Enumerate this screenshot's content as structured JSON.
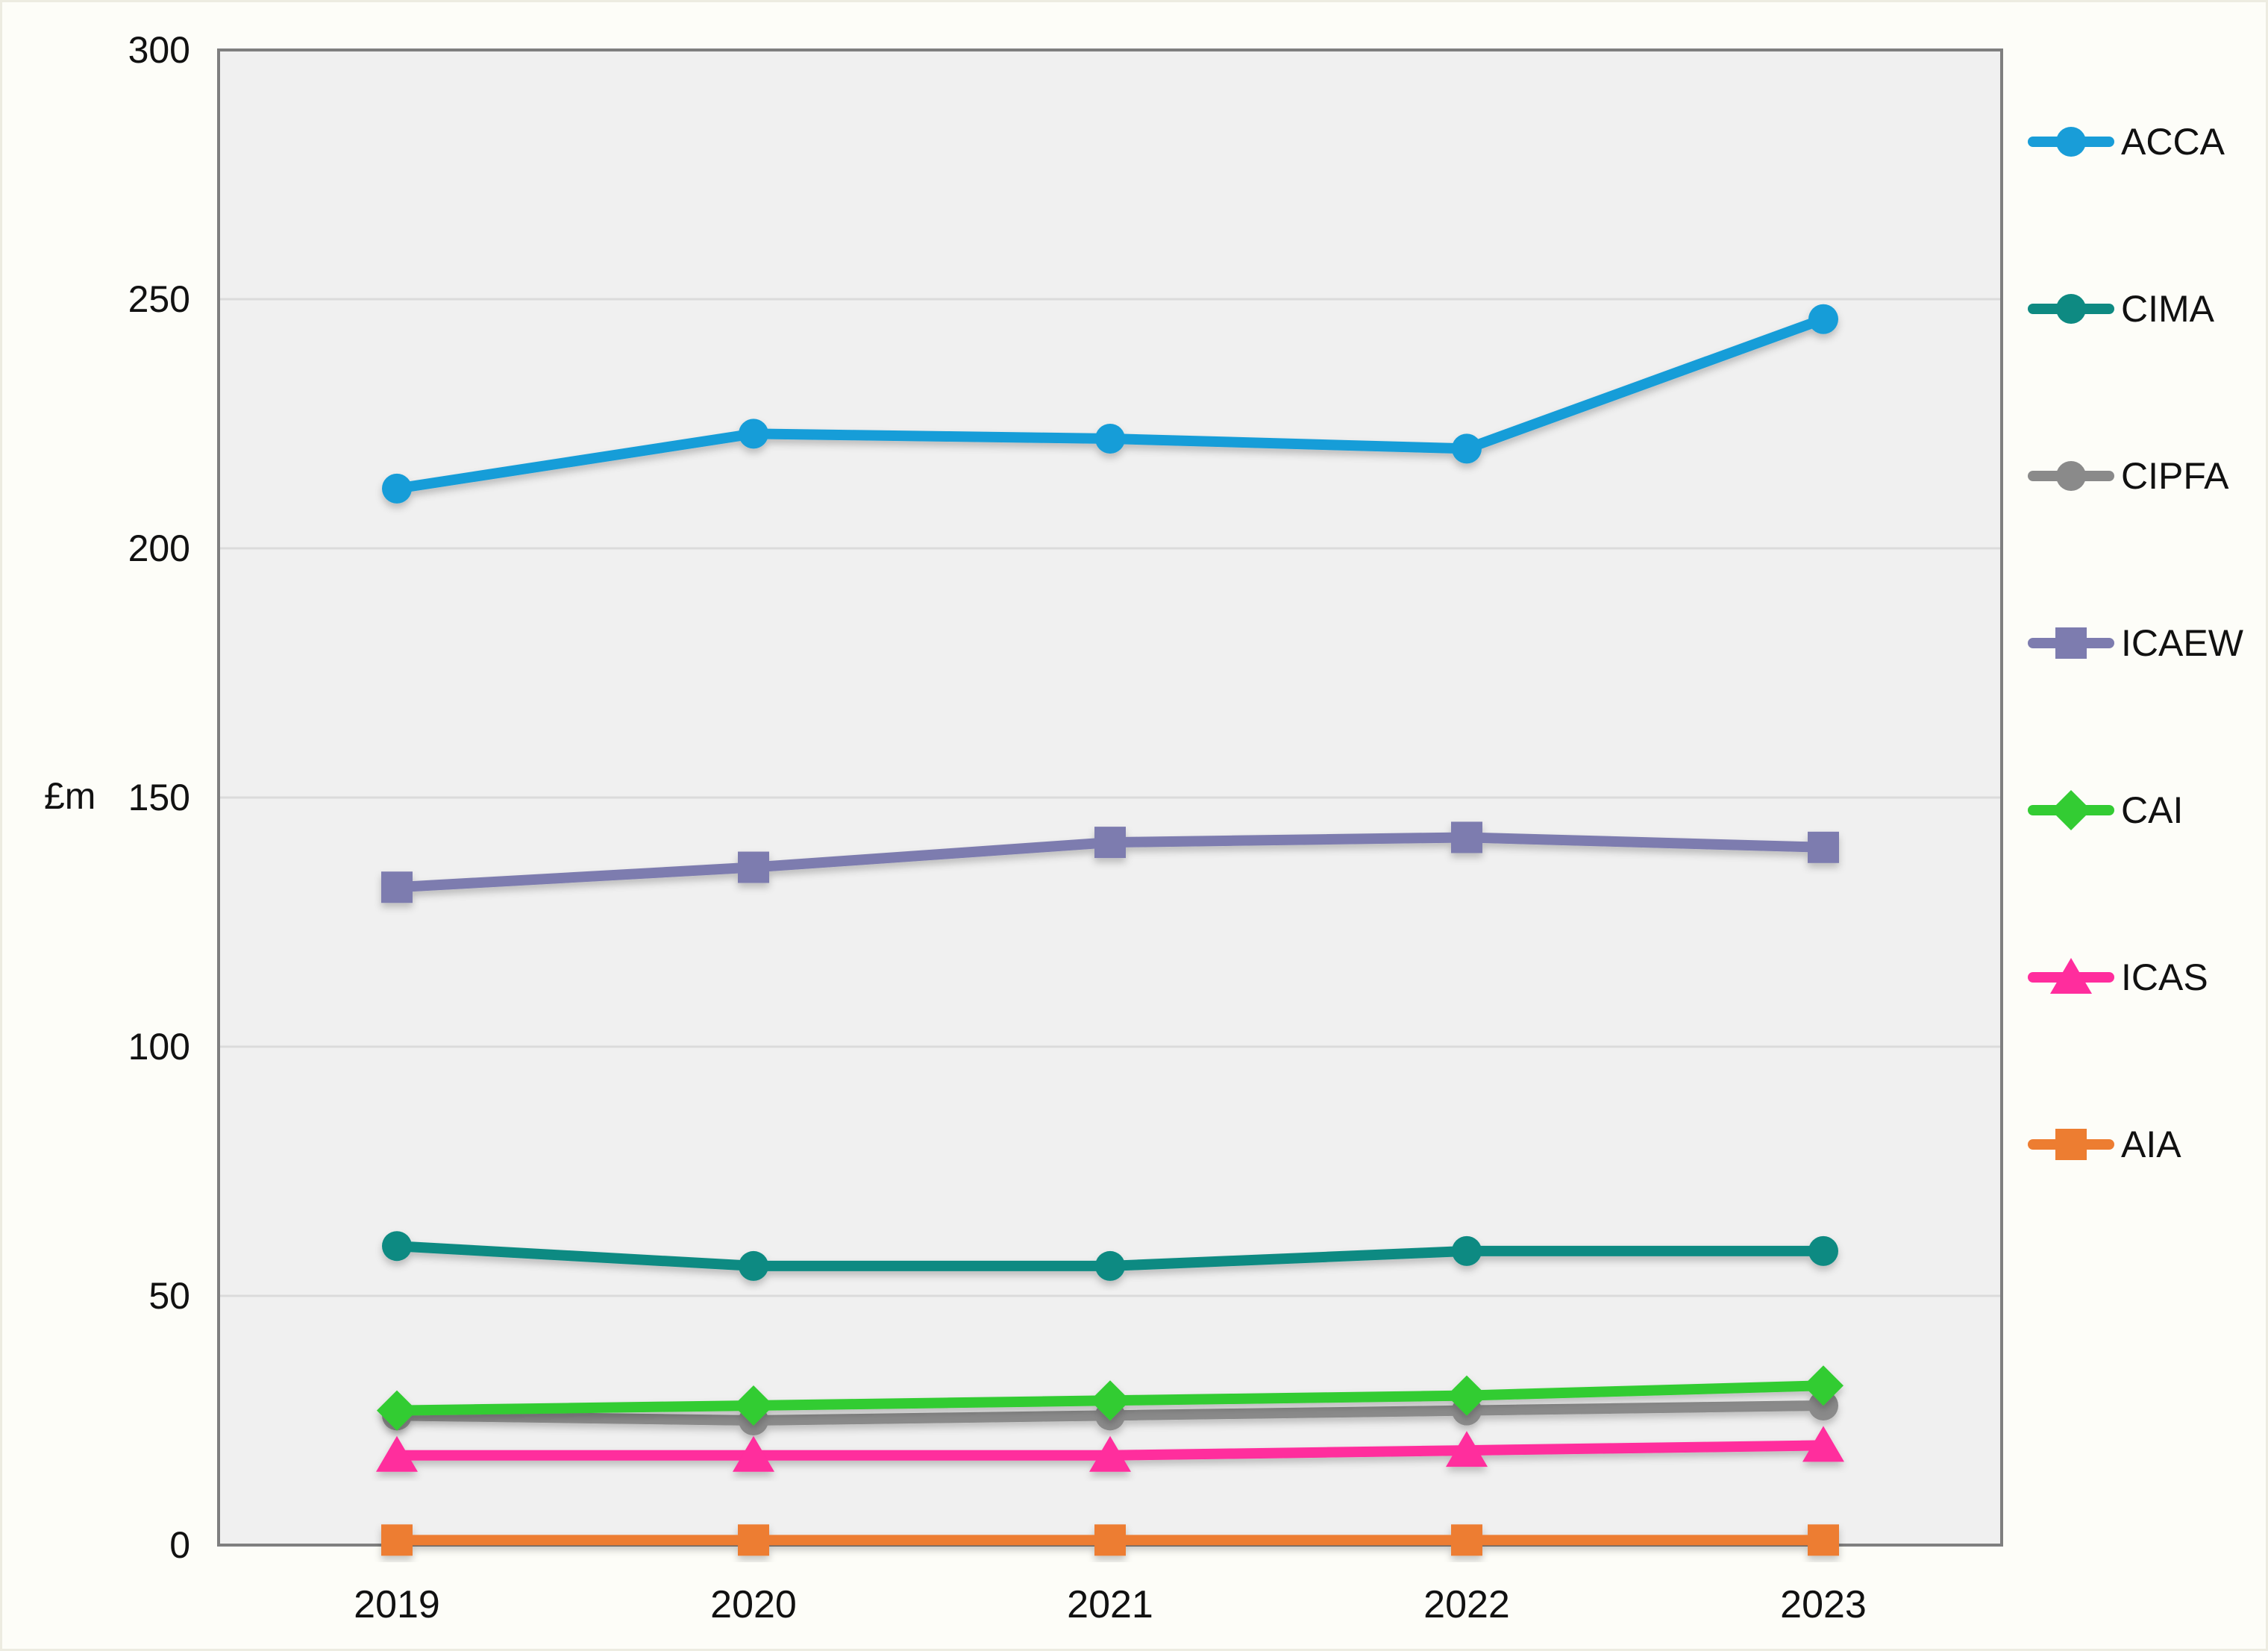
{
  "chart_data": {
    "type": "line",
    "title": "",
    "xlabel": "",
    "ylabel": "£m",
    "categories": [
      "2019",
      "2020",
      "2021",
      "2022",
      "2023"
    ],
    "series": [
      {
        "name": "ACCA",
        "color": "#199DD8",
        "marker": "circle",
        "values": [
          212,
          223,
          222,
          220,
          246
        ]
      },
      {
        "name": "CIMA",
        "color": "#0E8A82",
        "marker": "circle",
        "values": [
          60,
          56,
          56,
          59,
          59
        ]
      },
      {
        "name": "CIPFA",
        "color": "#8A8A8A",
        "marker": "circle",
        "values": [
          26,
          25,
          26,
          27,
          28
        ]
      },
      {
        "name": "ICAEW",
        "color": "#7D7CAF",
        "marker": "square",
        "values": [
          132,
          136,
          141,
          142,
          140
        ]
      },
      {
        "name": "CAI",
        "color": "#33CC33",
        "marker": "diamond",
        "values": [
          27,
          28,
          29,
          30,
          32
        ]
      },
      {
        "name": "ICAS",
        "color": "#FF2D9D",
        "marker": "triangle",
        "values": [
          18,
          18,
          18,
          19,
          20
        ]
      },
      {
        "name": "AIA",
        "color": "#ED7D31",
        "marker": "square",
        "values": [
          1,
          1,
          1,
          1,
          1
        ]
      }
    ],
    "ylim": [
      0,
      300
    ],
    "yticks": [
      0,
      50,
      100,
      150,
      200,
      250,
      300
    ],
    "grid": true,
    "legend_position": "right",
    "colors": {
      "page_bg": "#FDFDF8",
      "plot_bg": "#F0F0F0",
      "gridline": "#DBDBDB",
      "plot_border": "#7F7F7F",
      "text": "#111111"
    }
  }
}
